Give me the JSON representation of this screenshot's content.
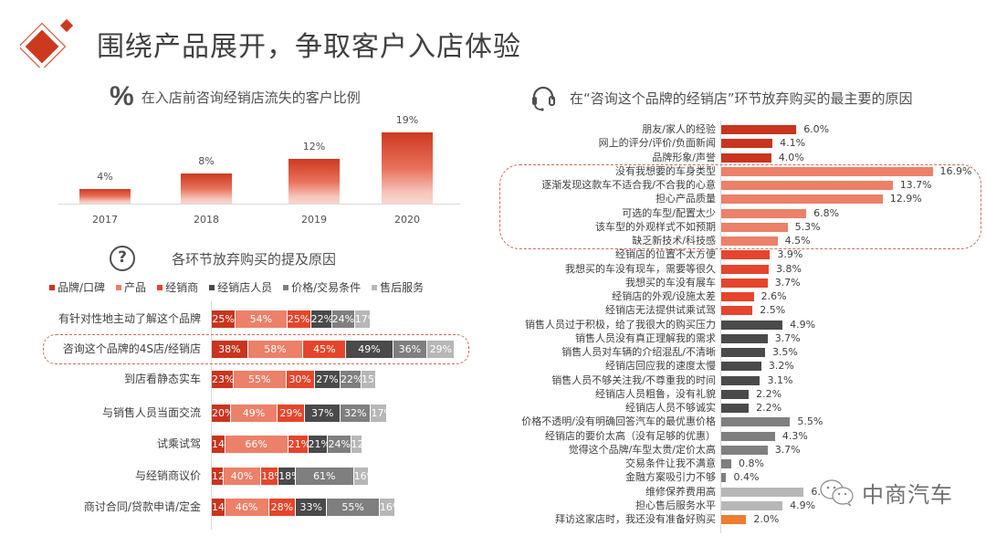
{
  "header": {
    "title": "围绕产品展开，争取客户入店体验",
    "logo_icon": "red-diamond-icon"
  },
  "colors": {
    "brand": "#c9341e",
    "product": "#ec8068",
    "dealer": "#e5452c",
    "staff": "#4a4a4a",
    "price": "#7f7f7f",
    "service": "#b7b7b7",
    "other": "#ed7d31",
    "highlight_dash": "#d06a55"
  },
  "chart_data": [
    {
      "type": "bar",
      "title": "在入店前咨询经销店流失的客户比例",
      "title_icon": "percent-icon",
      "categories": [
        "2017",
        "2018",
        "2019",
        "2020"
      ],
      "values": [
        4,
        8,
        12,
        19
      ],
      "value_labels": [
        "4%",
        "8%",
        "12%",
        "19%"
      ],
      "xlabel": "",
      "ylabel": "",
      "ylim": [
        0,
        20
      ],
      "grid": false,
      "legend": null
    },
    {
      "type": "bar",
      "orientation": "horizontal-stacked",
      "title": "各环节放弃购买的提及原因",
      "title_icon": "question-circle-icon",
      "legend_position": "top",
      "grid": false,
      "categories": [
        "有针对性地主动了解这个品牌",
        "咨询这个品牌的4S店/经销店",
        "到店看静态实车",
        "与销售人员当面交流",
        "试乘试驾",
        "与经销商议价",
        "商讨合同/贷款申请/定金"
      ],
      "highlighted_category": "咨询这个品牌的4S店/经销店",
      "series": [
        {
          "name": "品牌/口碑",
          "color": "#c9341e",
          "values": [
            25,
            38,
            23,
            20,
            14,
            12,
            14
          ]
        },
        {
          "name": "产品",
          "color": "#ec8068",
          "values": [
            54,
            58,
            55,
            49,
            66,
            40,
            46
          ]
        },
        {
          "name": "经销商",
          "color": "#e5452c",
          "values": [
            25,
            45,
            30,
            29,
            21,
            18,
            28
          ]
        },
        {
          "name": "经销店人员",
          "color": "#4a4a4a",
          "values": [
            22,
            49,
            27,
            37,
            21,
            18,
            33
          ]
        },
        {
          "name": "价格/交易条件",
          "color": "#7f7f7f",
          "values": [
            24,
            36,
            22,
            32,
            24,
            61,
            55
          ]
        },
        {
          "name": "售后服务",
          "color": "#b7b7b7",
          "values": [
            17,
            29,
            15,
            17,
            12,
            16,
            16
          ]
        }
      ]
    },
    {
      "type": "bar",
      "orientation": "horizontal",
      "title": "在“咨询这个品牌的经销店”环节放弃购买的最主要的原因",
      "title_icon": "headset-icon",
      "grid": false,
      "categories": [
        "朋友/家人的经验",
        "网上的评分/评价/负面新闻",
        "品牌形象/声誉",
        "没有我想要的车身类型",
        "逐渐发现这款车不适合我/不合我的心意",
        "担心产品质量",
        "可选的车型/配置太少",
        "该车型的外观样式不如预期",
        "缺乏新技术/科技感",
        "经销店的位置不太方便",
        "我想买的车没有现车，需要等很久",
        "我想买的车没有展车",
        "经销店的外观/设施太差",
        "经销店无法提供试乘试驾",
        "销售人员过于积极，给了我很大的购买压力",
        "销售人员没有真正理解我的需求",
        "销售人员对车辆的介绍混乱/不清晰",
        "经销店回应我的速度太慢",
        "销售人员不够关注我/不尊重我的时间",
        "经销店人员粗鲁，没有礼貌",
        "经销店人员不够诚实",
        "价格不透明/没有明确回答汽车的最优惠价格",
        "经销店的要价太高（没有足够的优惠）",
        "觉得这个品牌/车型太贵/定价太高",
        "交易条件让我不满意",
        "金融方案吸引力不够",
        "维修保养费用高",
        "担心售后服务水平",
        "拜访这家店时，我还没有准备好购买"
      ],
      "values": [
        6.0,
        4.1,
        4.0,
        16.9,
        13.7,
        12.9,
        6.8,
        5.3,
        4.5,
        3.9,
        3.8,
        3.7,
        2.6,
        2.5,
        4.9,
        3.7,
        3.5,
        3.2,
        3.1,
        2.2,
        2.2,
        5.5,
        4.3,
        3.7,
        0.8,
        0.4,
        6.6,
        4.9,
        2.0
      ],
      "value_labels": [
        "6.0%",
        "4.1%",
        "4.0%",
        "16.9%",
        "13.7%",
        "12.9%",
        "6.8%",
        "5.3%",
        "4.5%",
        "3.9%",
        "3.8%",
        "3.7%",
        "2.6%",
        "2.5%",
        "4.9%",
        "3.7%",
        "3.5%",
        "3.2%",
        "3.1%",
        "2.2%",
        "2.2%",
        "5.5%",
        "4.3%",
        "3.7%",
        "0.8%",
        "0.4%",
        "6.6%",
        "4.9%",
        "2.0%"
      ],
      "bar_groups": [
        "brand",
        "brand",
        "brand",
        "product",
        "product",
        "product",
        "product",
        "product",
        "product",
        "dealer",
        "dealer",
        "dealer",
        "dealer",
        "dealer",
        "staff",
        "staff",
        "staff",
        "staff",
        "staff",
        "staff",
        "staff",
        "price",
        "price",
        "price",
        "price",
        "price",
        "service",
        "service",
        "other"
      ],
      "highlighted_range": [
        3,
        8
      ]
    }
  ],
  "watermark": {
    "text": "中商汽车",
    "icon": "wechat-icon"
  }
}
